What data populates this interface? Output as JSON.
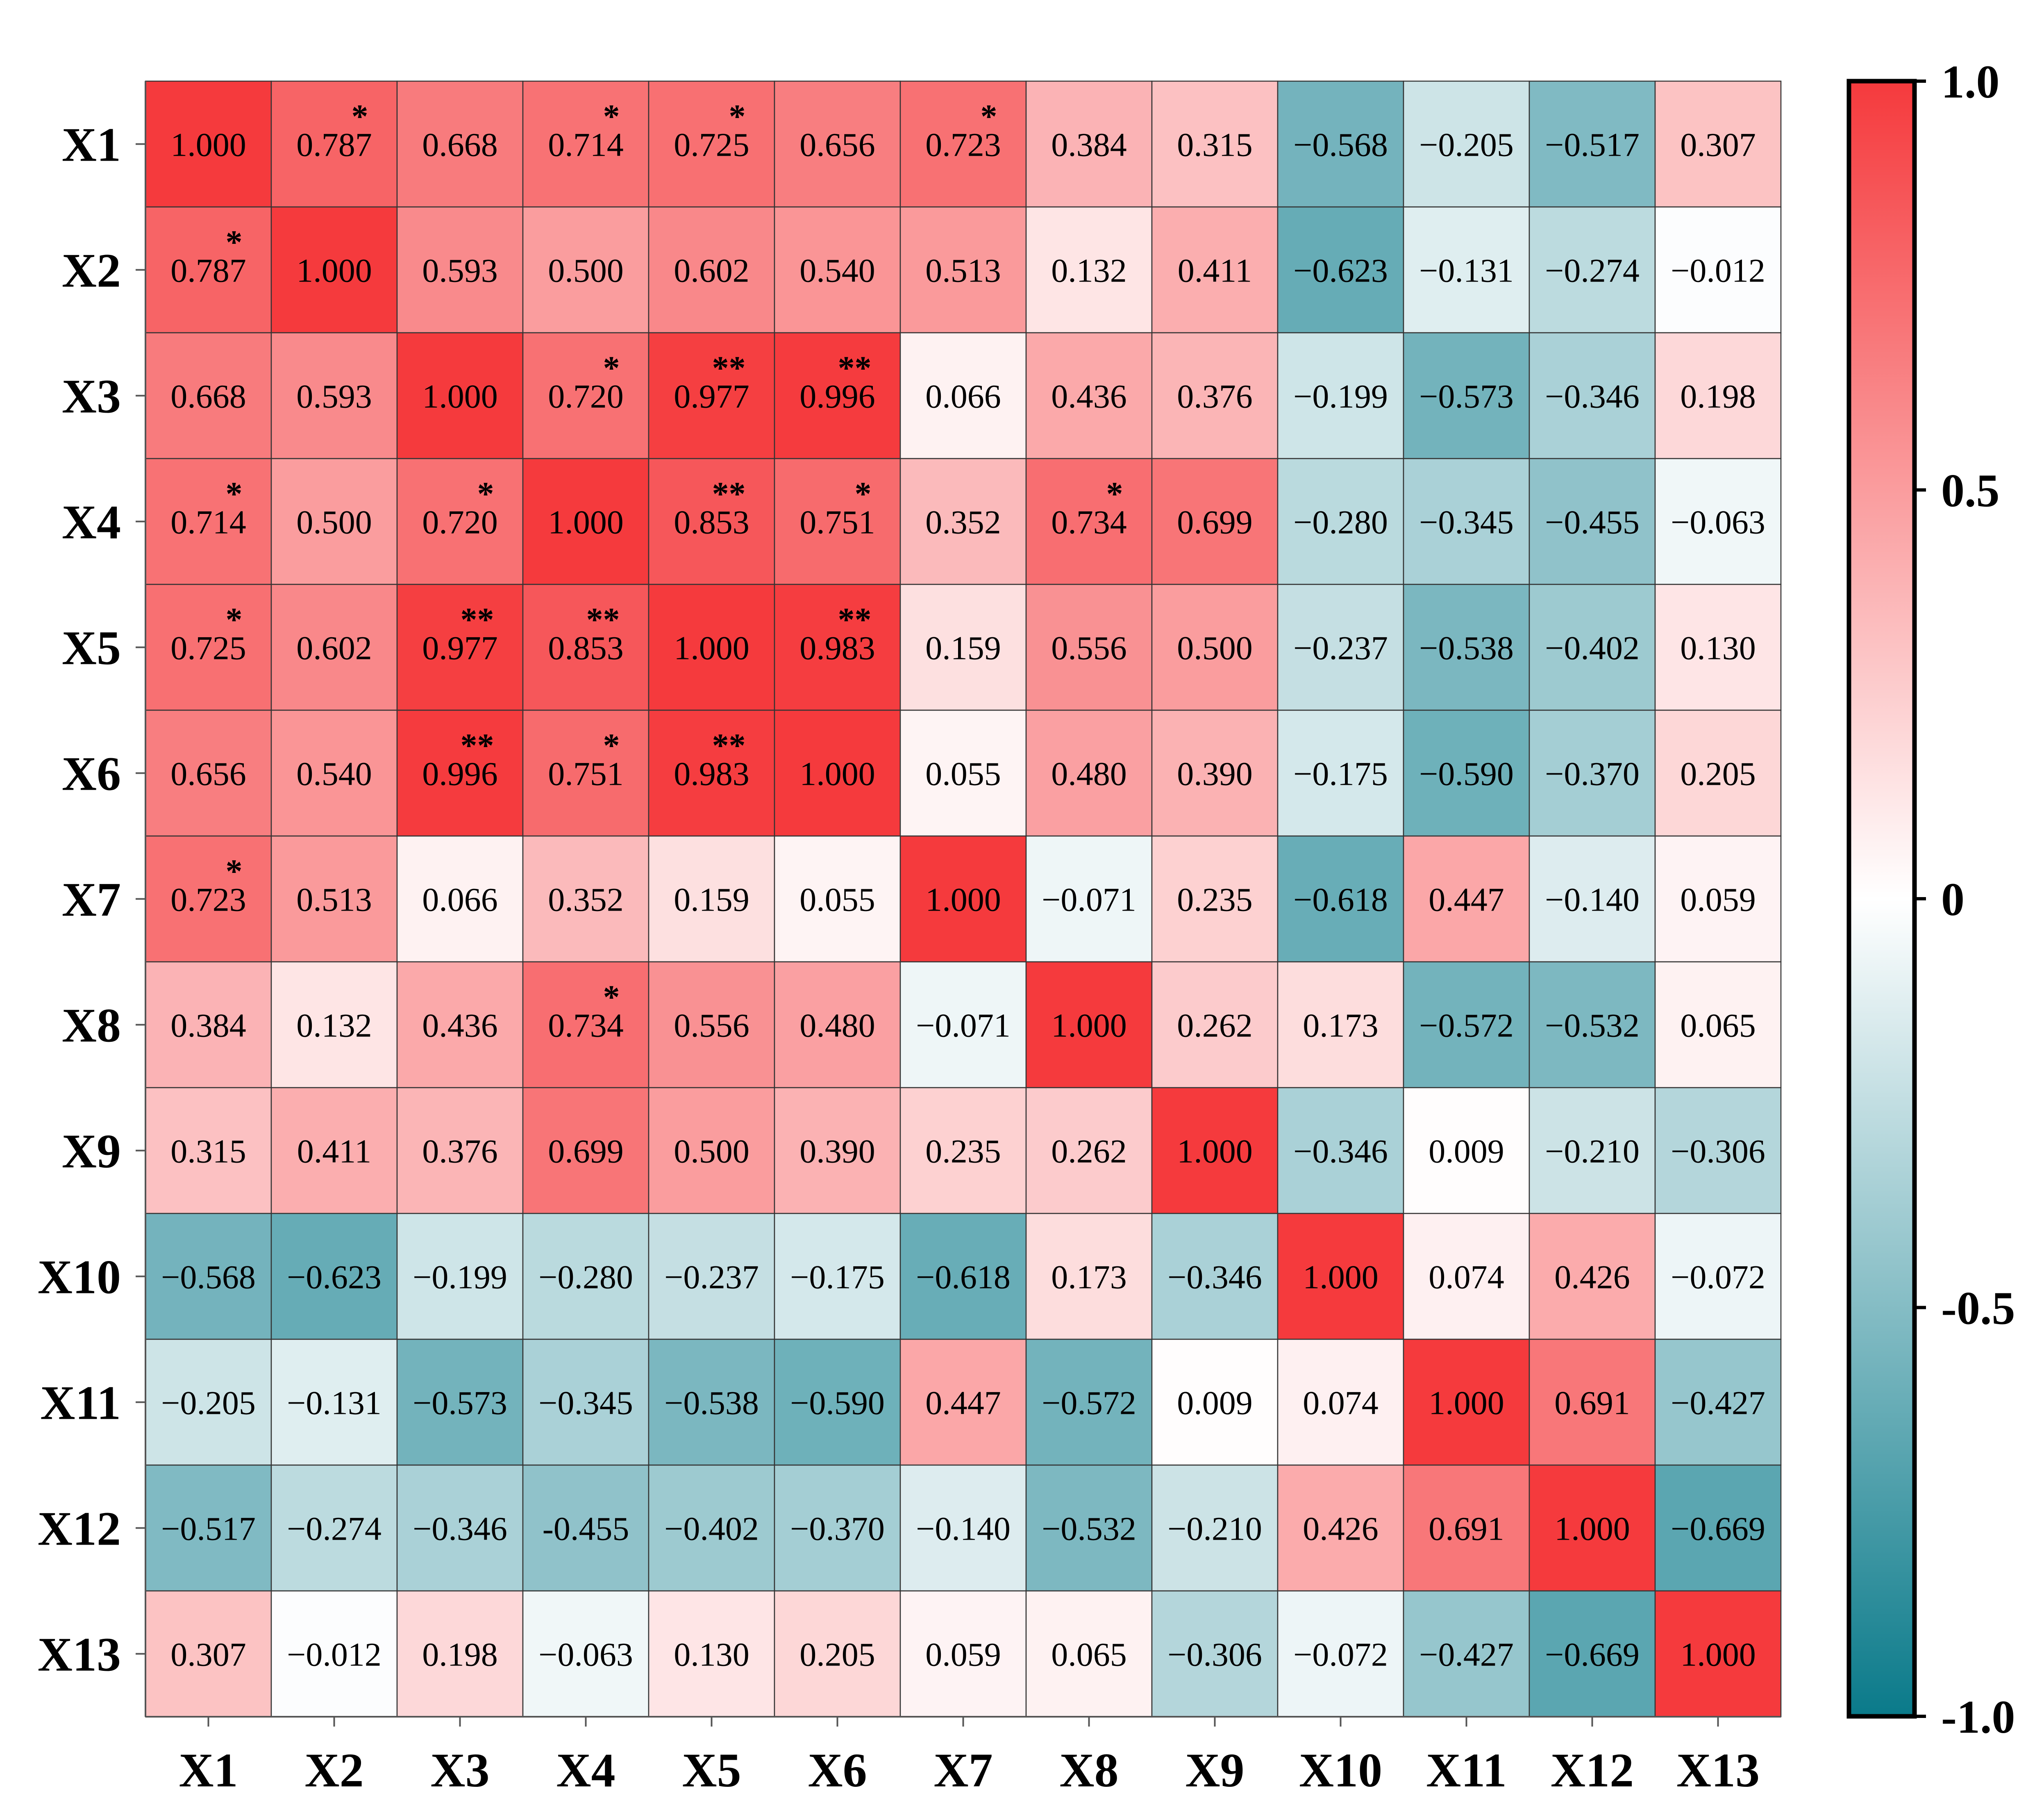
{
  "chart_data": {
    "type": "heatmap",
    "title": "",
    "row_labels": [
      "X1",
      "X2",
      "X3",
      "X4",
      "X5",
      "X6",
      "X7",
      "X8",
      "X9",
      "X10",
      "X11",
      "X12",
      "X13"
    ],
    "col_labels": [
      "X1",
      "X2",
      "X3",
      "X4",
      "X5",
      "X6",
      "X7",
      "X8",
      "X9",
      "X10",
      "X11",
      "X12",
      "X13"
    ],
    "values": [
      [
        "1.000",
        "0.787",
        "0.668",
        "0.714",
        "0.725",
        "0.656",
        "0.723",
        "0.384",
        "0.315",
        "−0.568",
        "−0.205",
        "−0.517",
        "0.307"
      ],
      [
        "0.787",
        "1.000",
        "0.593",
        "0.500",
        "0.602",
        "0.540",
        "0.513",
        "0.132",
        "0.411",
        "−0.623",
        "−0.131",
        "−0.274",
        "−0.012"
      ],
      [
        "0.668",
        "0.593",
        "1.000",
        "0.720",
        "0.977",
        "0.996",
        "0.066",
        "0.436",
        "0.376",
        "−0.199",
        "−0.573",
        "−0.346",
        "0.198"
      ],
      [
        "0.714",
        "0.500",
        "0.720",
        "1.000",
        "0.853",
        "0.751",
        "0.352",
        "0.734",
        "0.699",
        "−0.280",
        "−0.345",
        "−0.455",
        "−0.063"
      ],
      [
        "0.725",
        "0.602",
        "0.977",
        "0.853",
        "1.000",
        "0.983",
        "0.159",
        "0.556",
        "0.500",
        "−0.237",
        "−0.538",
        "−0.402",
        "0.130"
      ],
      [
        "0.656",
        "0.540",
        "0.996",
        "0.751",
        "0.983",
        "1.000",
        "0.055",
        "0.480",
        "0.390",
        "−0.175",
        "−0.590",
        "−0.370",
        "0.205"
      ],
      [
        "0.723",
        "0.513",
        "0.066",
        "0.352",
        "0.159",
        "0.055",
        "1.000",
        "−0.071",
        "0.235",
        "−0.618",
        "0.447",
        "−0.140",
        "0.059"
      ],
      [
        "0.384",
        "0.132",
        "0.436",
        "0.734",
        "0.556",
        "0.480",
        "−0.071",
        "1.000",
        "0.262",
        "0.173",
        "−0.572",
        "−0.532",
        "0.065"
      ],
      [
        "0.315",
        "0.411",
        "0.376",
        "0.699",
        "0.500",
        "0.390",
        "0.235",
        "0.262",
        "1.000",
        "−0.346",
        "0.009",
        "−0.210",
        "−0.306"
      ],
      [
        "−0.568",
        "−0.623",
        "−0.199",
        "−0.280",
        "−0.237",
        "−0.175",
        "−0.618",
        "0.173",
        "−0.346",
        "1.000",
        "0.074",
        "0.426",
        "−0.072"
      ],
      [
        "−0.205",
        "−0.131",
        "−0.573",
        "−0.345",
        "−0.538",
        "−0.590",
        "0.447",
        "−0.572",
        "0.009",
        "0.074",
        "1.000",
        "0.691",
        "−0.427"
      ],
      [
        "−0.517",
        "−0.274",
        "−0.346",
        "-0.455",
        "−0.402",
        "−0.370",
        "−0.140",
        "−0.532",
        "−0.210",
        "0.426",
        "0.691",
        "1.000",
        "−0.669"
      ],
      [
        "0.307",
        "−0.012",
        "0.198",
        "−0.063",
        "0.130",
        "0.205",
        "0.059",
        "0.065",
        "−0.306",
        "−0.072",
        "−0.427",
        "−0.669",
        "1.000"
      ]
    ],
    "significance": [
      [
        "",
        "*",
        "",
        "*",
        "*",
        "",
        "*",
        "",
        "",
        "",
        "",
        "",
        ""
      ],
      [
        "*",
        "",
        "",
        "",
        "",
        "",
        "",
        "",
        "",
        "",
        "",
        "",
        ""
      ],
      [
        "",
        "",
        "",
        "*",
        "**",
        "**",
        "",
        "",
        "",
        "",
        "",
        "",
        ""
      ],
      [
        "*",
        "",
        "*",
        "",
        "**",
        "*",
        "",
        "*",
        "",
        "",
        "",
        "",
        ""
      ],
      [
        "*",
        "",
        "**",
        "**",
        "",
        "**",
        "",
        "",
        "",
        "",
        "",
        "",
        ""
      ],
      [
        "",
        "",
        "**",
        "*",
        "**",
        "",
        "",
        "",
        "",
        "",
        "",
        "",
        ""
      ],
      [
        "*",
        "",
        "",
        "",
        "",
        "",
        "",
        "",
        "",
        "",
        "",
        "",
        ""
      ],
      [
        "",
        "",
        "",
        "*",
        "",
        "",
        "",
        "",
        "",
        "",
        "",
        "",
        ""
      ],
      [
        "",
        "",
        "",
        "",
        "",
        "",
        "",
        "",
        "",
        "",
        "",
        "",
        ""
      ],
      [
        "",
        "",
        "",
        "",
        "",
        "",
        "",
        "",
        "",
        "",
        "",
        "",
        ""
      ],
      [
        "",
        "",
        "",
        "",
        "",
        "",
        "",
        "",
        "",
        "",
        "",
        "",
        ""
      ],
      [
        "",
        "",
        "",
        "",
        "",
        "",
        "",
        "",
        "",
        "",
        "",
        "",
        ""
      ],
      [
        "",
        "",
        "",
        "",
        "",
        "",
        "",
        "",
        "",
        "",
        "",
        "",
        ""
      ]
    ],
    "colorbar": {
      "range": [
        -1.0,
        1.0
      ],
      "tick_labels": [
        "1.0",
        "0.5",
        "0",
        "-0.5",
        "-1.0"
      ],
      "tick_values": [
        1.0,
        0.5,
        0.0,
        -0.5,
        -1.0
      ]
    },
    "colors": {
      "positive": "#f53a3d",
      "neutral": "#ffffff",
      "negative": "#0a7a8a",
      "grid": "#333333",
      "axis": "#555555"
    }
  }
}
